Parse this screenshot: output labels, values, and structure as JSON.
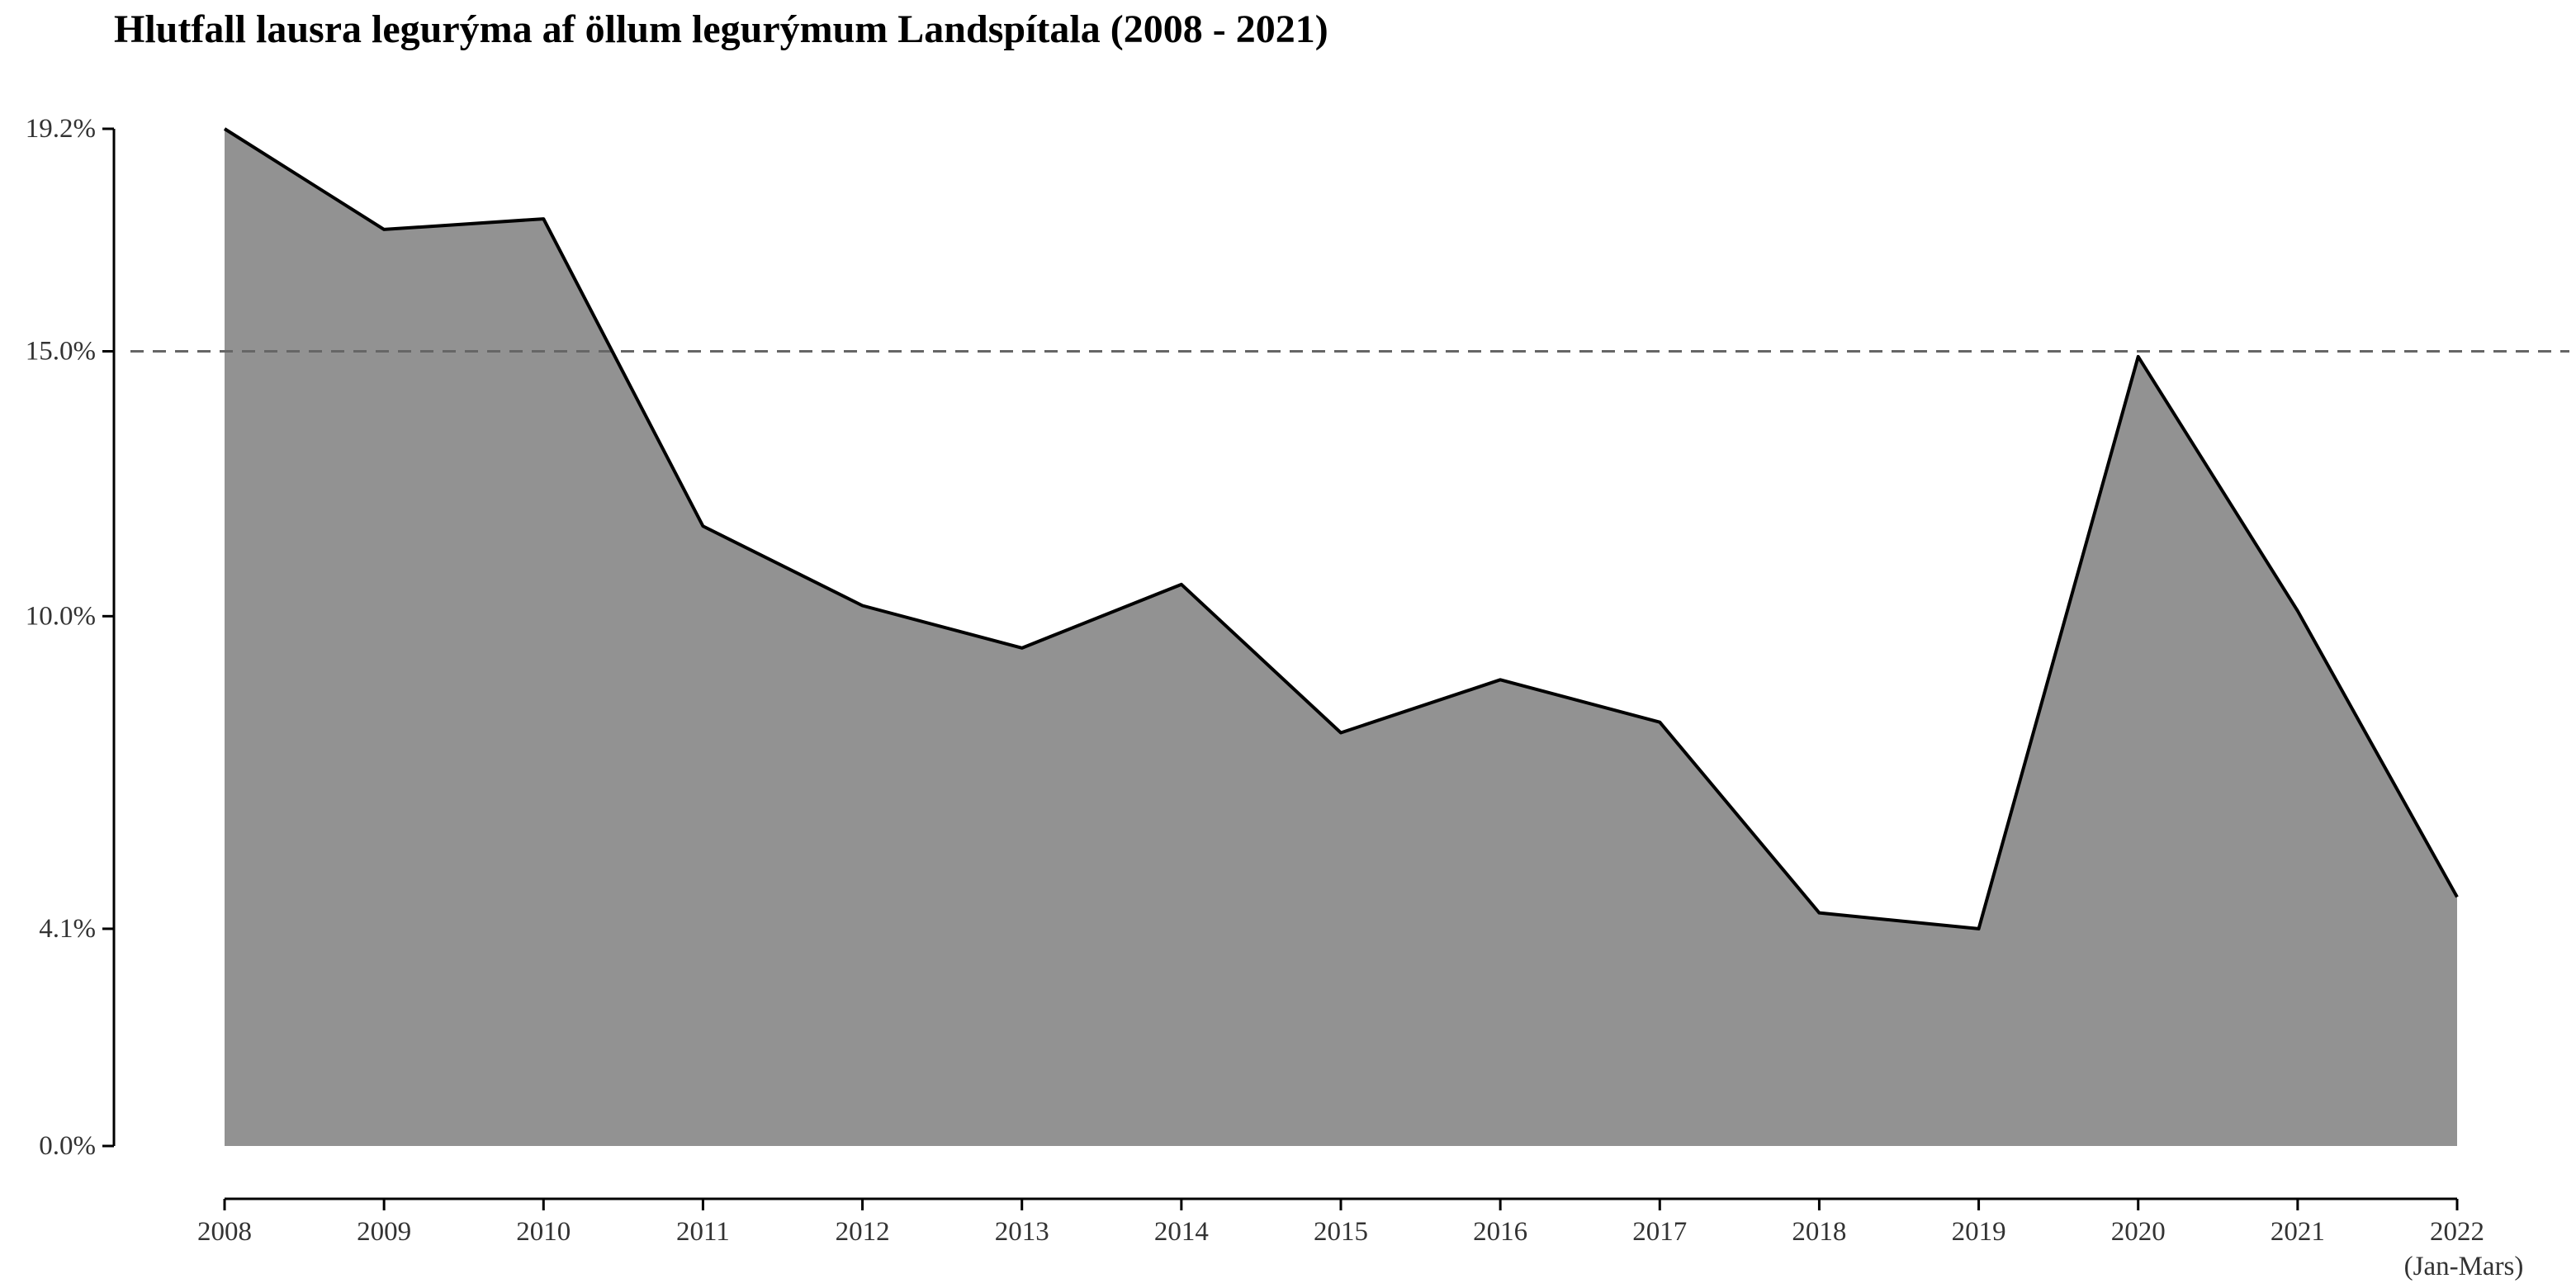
{
  "chart_data": {
    "type": "area",
    "title": "Hlutfall lausra legurýma af öllum legurýmum Landspítala (2008 - 2021)",
    "xlabel": "",
    "ylabel": "",
    "x": [
      2008,
      2009,
      2010,
      2011,
      2012,
      2013,
      2014,
      2015,
      2016,
      2017,
      2018,
      2019,
      2020,
      2021,
      2022
    ],
    "x_tick_labels": [
      "2008",
      "2009",
      "2010",
      "2011",
      "2012",
      "2013",
      "2014",
      "2015",
      "2016",
      "2017",
      "2018",
      "2019",
      "2020",
      "2021",
      "2022"
    ],
    "x_tick_sublabel": {
      "index": 14,
      "text": "(Jan-Mars)"
    },
    "series": [
      {
        "values": [
          19.2,
          17.3,
          17.5,
          11.7,
          10.2,
          9.4,
          10.6,
          7.8,
          8.8,
          8.0,
          4.4,
          4.1,
          14.9,
          10.1,
          4.7
        ]
      }
    ],
    "y_ticks": [
      0.0,
      4.1,
      10.0,
      15.0,
      19.2
    ],
    "y_tick_labels": [
      "0.0%",
      "4.1%",
      "10.0%",
      "15.0%",
      "19.2%"
    ],
    "ylim": [
      0,
      19.2
    ],
    "reference_line": {
      "y": 15.0,
      "style": "dashed"
    },
    "grid": false,
    "legend": "none",
    "colors": {
      "area_fill": "#929292",
      "line": "#000000",
      "reference_line": "#666666",
      "axis": "#000000",
      "tick_text": "#333333",
      "background": "#ffffff"
    }
  }
}
